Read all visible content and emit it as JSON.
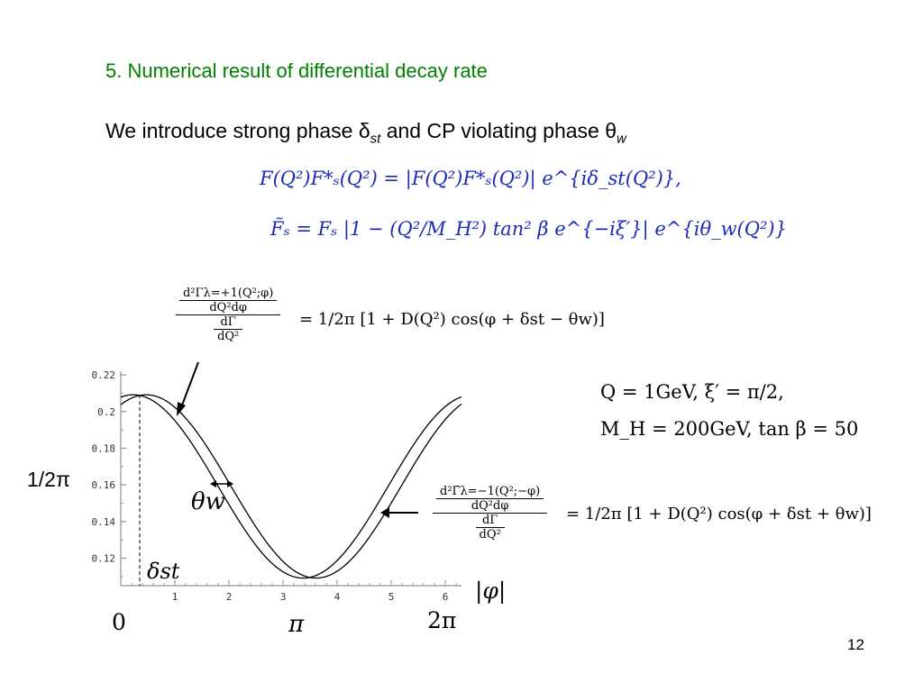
{
  "slide": {
    "title": "5. Numerical result of differential decay rate",
    "intro_prefix": "We introduce strong phase δ",
    "intro_sub1": "st",
    "intro_middle": "  and CP violating phase θ",
    "intro_sub2": "w",
    "page_number": "12"
  },
  "equations": {
    "eq1": "F(Q²)F*ₛ(Q²) = |F(Q²)F*ₛ(Q²)| e^{iδ_st(Q²)},",
    "eq2": "F̃ₛ = Fₛ |1 − (Q²/M_H²) tan² β e^{−iξ′}| e^{iθ_w(Q²)}",
    "frac_plus_num_num": "d²Γλ=+1(Q²;φ)",
    "frac_plus_num_den": "dQ²dφ",
    "frac_plus_den_num": "dΓ",
    "frac_plus_den_den": "dQ²",
    "rhs_plus": "= 1/2π [1 + D(Q²) cos(φ + δst − θw)]",
    "frac_minus_num_num": "d²Γ̄λ=−1(Q²;−φ)",
    "frac_minus_num_den": "dQ²dφ",
    "frac_minus_den_num": "dΓ",
    "frac_minus_den_den": "dQ²",
    "rhs_minus": "= 1/2π [1 + D(Q²) cos(φ + δst + θw)]",
    "params_line1": "Q = 1GeV,  ξ′ = π/2,",
    "params_line2": "M_H = 200GeV,  tan β = 50"
  },
  "annotations": {
    "half_over_2pi": "1/2π",
    "theta_w": "θw",
    "delta_st": "δst",
    "abs_phi": "|φ|",
    "zero": "0",
    "pi": "π",
    "two_pi": "2π"
  },
  "chart_data": {
    "type": "line",
    "xlim": [
      0,
      6.3
    ],
    "ylim": [
      0.105,
      0.222
    ],
    "xticks": [
      "1",
      "2",
      "3",
      "4",
      "5",
      "6"
    ],
    "yticks": [
      "0.22",
      "0.2",
      "0.18",
      "0.16",
      "0.14",
      "0.12"
    ],
    "xtick_values": [
      1,
      2,
      3,
      4,
      5,
      6
    ],
    "ytick_values": [
      0.22,
      0.2,
      0.18,
      0.16,
      0.14,
      0.12
    ],
    "grid": false,
    "curve_params": {
      "center": 0.159155,
      "amplitude": 0.05,
      "delta_st": 0.35,
      "theta_w": 0.12
    },
    "marked_x": 0.35
  }
}
